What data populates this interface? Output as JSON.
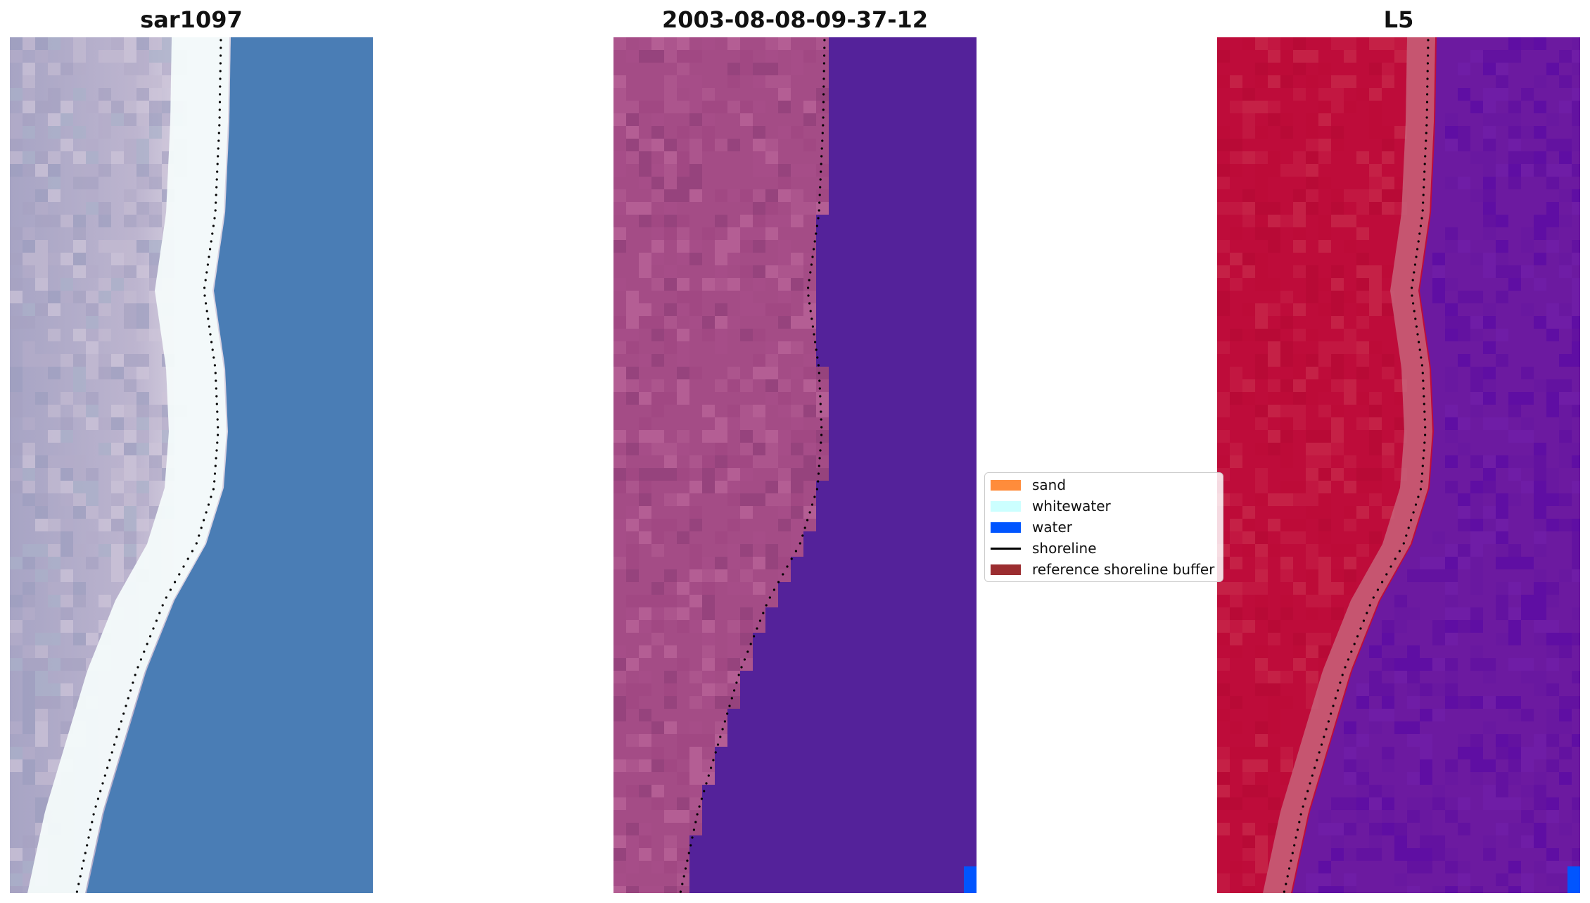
{
  "titles": {
    "left": "sar1097",
    "middle": "2003-08-08-09-37-12",
    "right": "L5"
  },
  "legend": {
    "items": [
      {
        "label": "sand",
        "color": "#ff8c3b",
        "kind": "patch"
      },
      {
        "label": "whitewater",
        "color": "#ccffff",
        "kind": "patch"
      },
      {
        "label": "water",
        "color": "#0055ff",
        "kind": "patch"
      },
      {
        "label": "shoreline",
        "color": "#000000",
        "kind": "line"
      },
      {
        "label": "reference shoreline buffer",
        "color": "#9b2d30",
        "kind": "patch"
      }
    ]
  },
  "colors": {
    "rgb_sand": "#b8b3cc",
    "rgb_white": "#f4fbfb",
    "rgb_water": "#4a7db5",
    "class_land": "#a44c86",
    "class_water": "#54229a",
    "class_water_pixel": "#0055ff",
    "ndwi_land": "#be0c3a",
    "ndwi_water": "#6c1aa0"
  }
}
